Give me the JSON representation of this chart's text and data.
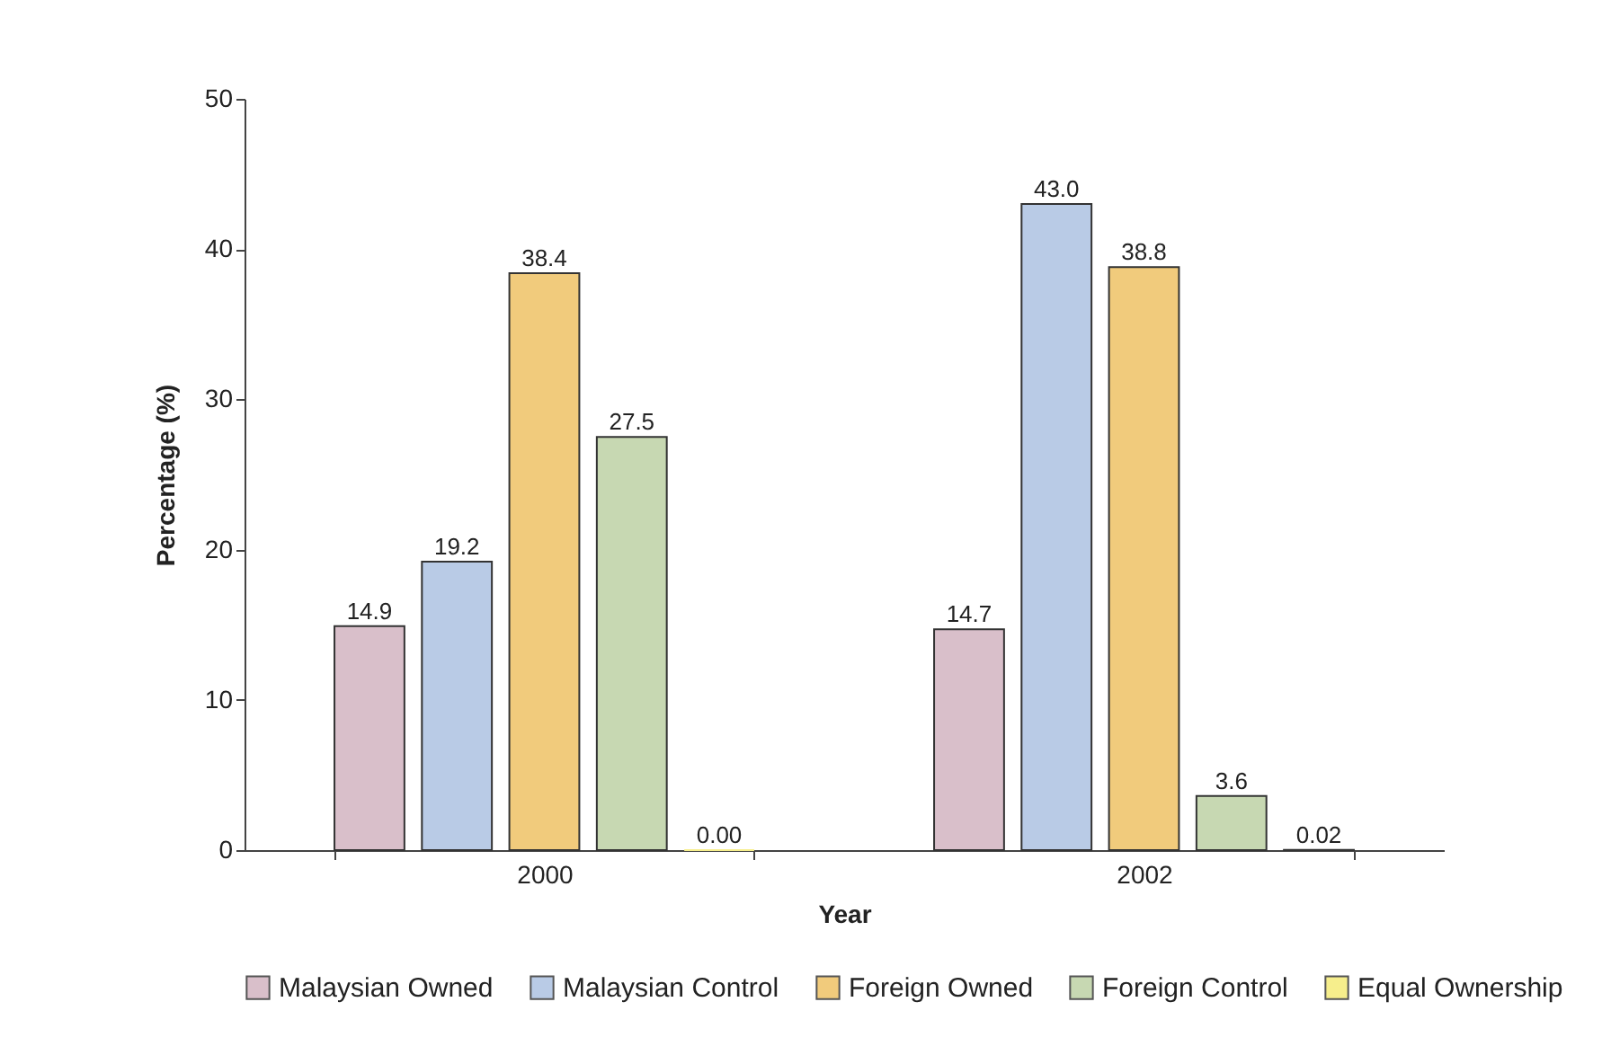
{
  "chart_data": {
    "type": "bar",
    "xlabel": "Year",
    "ylabel": "Percentage (%)",
    "categories": [
      "2000",
      "2002"
    ],
    "series": [
      {
        "name": "Malaysian Owned",
        "color": "#d9bfca",
        "values": [
          14.9,
          14.7
        ],
        "value_labels": [
          "14.9",
          "14.7"
        ]
      },
      {
        "name": "Malaysian Control",
        "color": "#b9cbe6",
        "values": [
          19.2,
          43.0
        ],
        "value_labels": [
          "19.2",
          "43.0"
        ]
      },
      {
        "name": "Foreign Owned",
        "color": "#f1cb7c",
        "values": [
          38.4,
          38.8
        ],
        "value_labels": [
          "38.4",
          "38.8"
        ]
      },
      {
        "name": "Foreign Control",
        "color": "#c7d8b2",
        "values": [
          27.5,
          3.6
        ],
        "value_labels": [
          "27.5",
          "3.6"
        ]
      },
      {
        "name": "Equal Ownership",
        "color": "#f6ee8c",
        "values": [
          0.0,
          0.02
        ],
        "value_labels": [
          "0.00",
          "0.02"
        ]
      }
    ],
    "ylim": [
      0,
      50
    ],
    "yticks": [
      0,
      10,
      20,
      30,
      40,
      50
    ],
    "legend": "bottom"
  }
}
